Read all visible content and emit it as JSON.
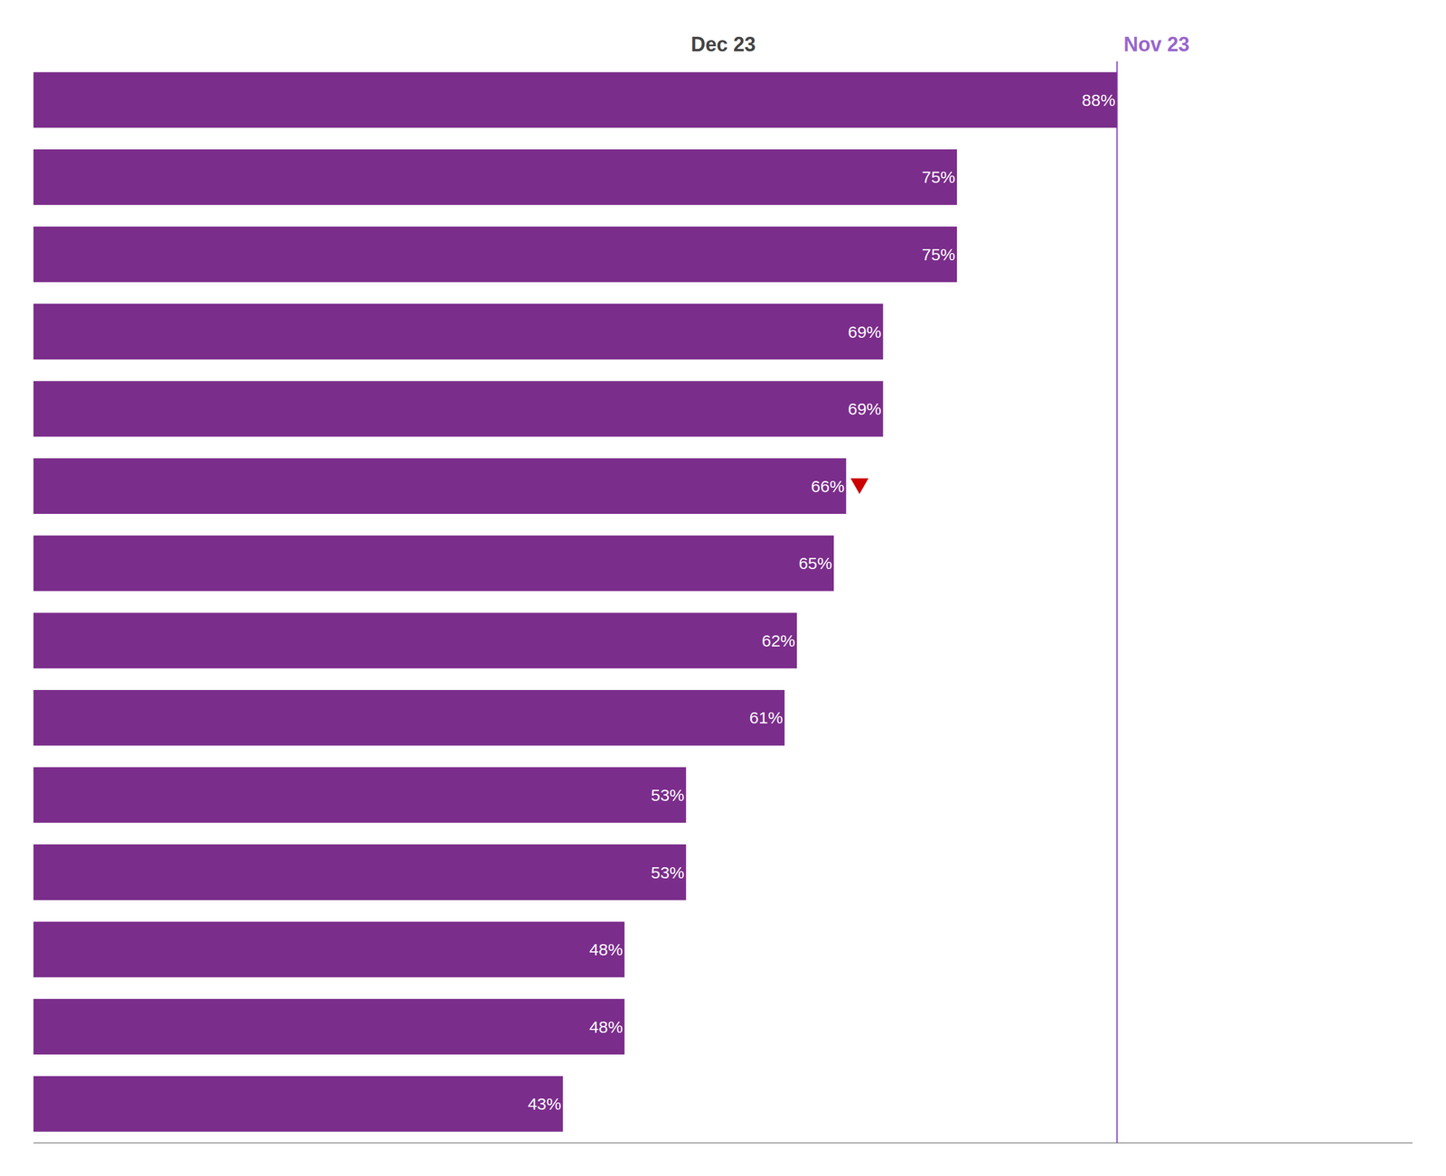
{
  "chart_data": {
    "type": "bar",
    "orientation": "horizontal",
    "categories": [
      null,
      null,
      null,
      null,
      null,
      null,
      null,
      null,
      null,
      null,
      null,
      null,
      null,
      null
    ],
    "values": [
      88,
      75,
      75,
      69,
      69,
      66,
      65,
      62,
      61,
      53,
      53,
      48,
      48,
      43
    ],
    "value_labels": [
      "88%",
      "75%",
      "75%",
      "69%",
      "69%",
      "66%",
      "65%",
      "62%",
      "61%",
      "53%",
      "53%",
      "48%",
      "48%",
      "43%"
    ],
    "data_labels": true,
    "color": "#7B2D8B",
    "xlim": [
      0,
      112
    ],
    "tick_labels": false,
    "grid": false,
    "reference_lines": [
      {
        "x": 88,
        "label": "Nov 23",
        "color": "#9966CC"
      }
    ],
    "annotations": [
      {
        "text": "Dec 23"
      }
    ],
    "highlight": {
      "index": 5,
      "color": "#CC0000",
      "marker": "triangle-down"
    }
  }
}
